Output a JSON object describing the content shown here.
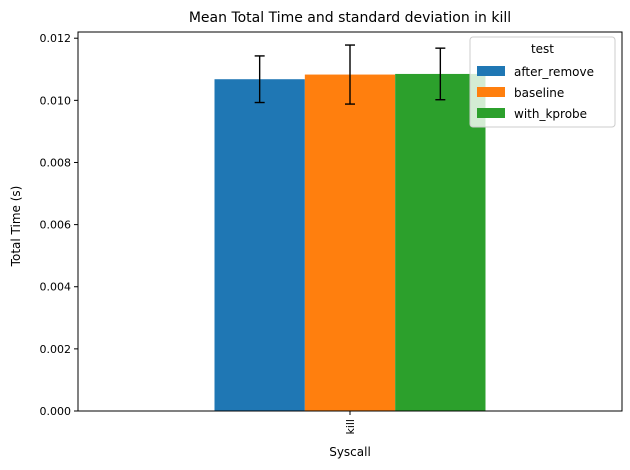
{
  "chart_data": {
    "type": "bar",
    "title": "Mean Total Time and standard deviation in kill",
    "xlabel": "Syscall",
    "ylabel": "Total Time (s)",
    "categories": [
      "kill"
    ],
    "ylim": [
      0,
      0.0122
    ],
    "yticks": [
      0.0,
      0.002,
      0.004,
      0.006,
      0.008,
      0.01,
      0.012
    ],
    "ytick_labels": [
      "0.000",
      "0.002",
      "0.004",
      "0.006",
      "0.008",
      "0.010",
      "0.012"
    ],
    "grid": false,
    "legend": {
      "title": "test",
      "position": "top-right"
    },
    "series": [
      {
        "name": "after_remove",
        "color": "#1f77b4",
        "values": [
          0.01068
        ],
        "errors": [
          0.00075
        ]
      },
      {
        "name": "baseline",
        "color": "#ff7f0e",
        "values": [
          0.01083
        ],
        "errors": [
          0.00095
        ]
      },
      {
        "name": "with_kprobe",
        "color": "#2ca02c",
        "values": [
          0.01085
        ],
        "errors": [
          0.00083
        ]
      }
    ]
  }
}
